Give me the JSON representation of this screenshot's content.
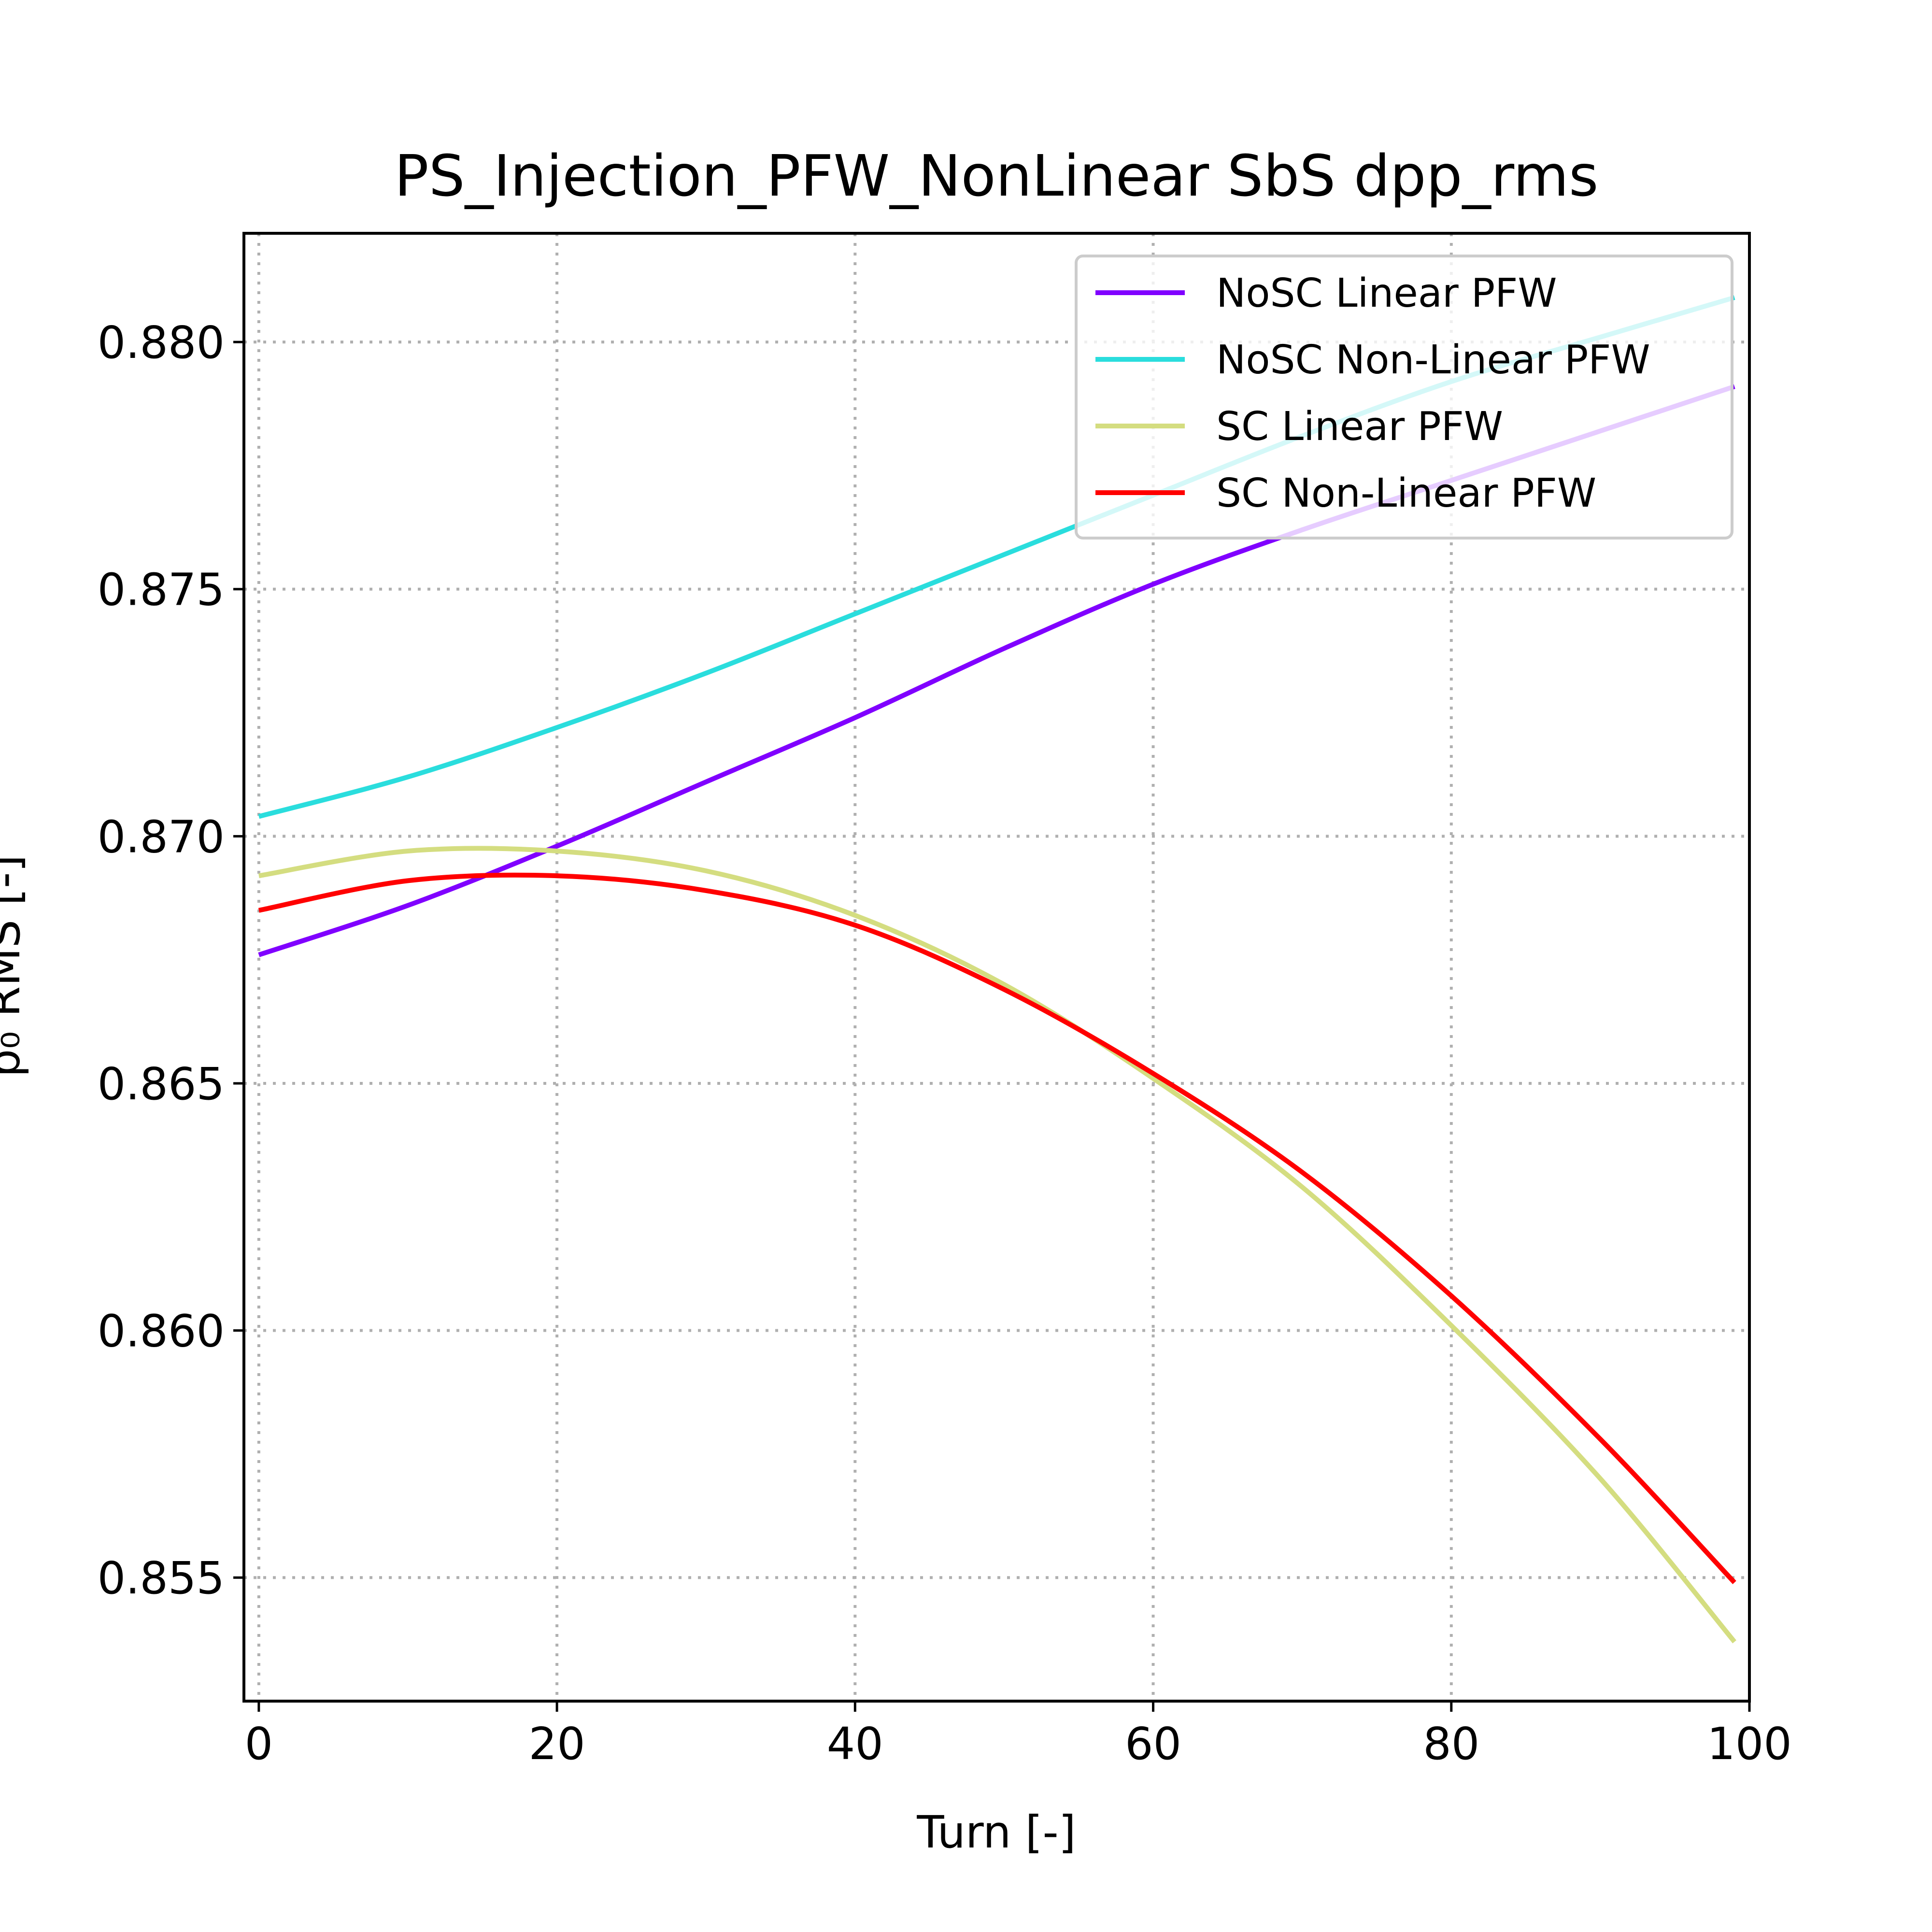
{
  "chart_data": {
    "type": "line",
    "title": "PS_Injection_PFW_NonLinear SbS dpp_rms",
    "xlabel": "Turn [-]",
    "ylabel": "p₀ RMS [-]",
    "xlim": [
      -1,
      100
    ],
    "ylim": [
      0.8525,
      0.8822
    ],
    "xticks": [
      0,
      20,
      40,
      60,
      80,
      100
    ],
    "yticks": [
      0.855,
      0.86,
      0.865,
      0.87,
      0.875,
      0.88
    ],
    "ytick_labels": [
      "0.855",
      "0.860",
      "0.865",
      "0.870",
      "0.875",
      "0.880"
    ],
    "grid": true,
    "legend_position": "top-right",
    "x": [
      0,
      10,
      20,
      30,
      40,
      50,
      60,
      70,
      80,
      90,
      99
    ],
    "series": [
      {
        "name": "NoSC Linear PFW",
        "color": "#8000ff",
        "values": [
          0.8676,
          0.8686,
          0.8698,
          0.8711,
          0.8724,
          0.8738,
          0.8751,
          0.8762,
          0.8772,
          0.8782,
          0.8791
        ]
      },
      {
        "name": "NoSC Non-Linear PFW",
        "color": "#2adddd",
        "values": [
          0.8704,
          0.8712,
          0.8722,
          0.8733,
          0.8745,
          0.8757,
          0.8769,
          0.8781,
          0.8792,
          0.8801,
          0.8809
        ]
      },
      {
        "name": "SC Linear PFW",
        "color": "#d4dd80",
        "values": [
          0.8692,
          0.8697,
          0.8697,
          0.8693,
          0.8684,
          0.867,
          0.8651,
          0.8629,
          0.8601,
          0.857,
          0.8537
        ]
      },
      {
        "name": "SC Non-Linear PFW",
        "color": "#ff0000",
        "values": [
          0.8685,
          0.8691,
          0.8692,
          0.8689,
          0.8682,
          0.8669,
          0.8652,
          0.8632,
          0.8607,
          0.8578,
          0.8549
        ]
      }
    ]
  }
}
